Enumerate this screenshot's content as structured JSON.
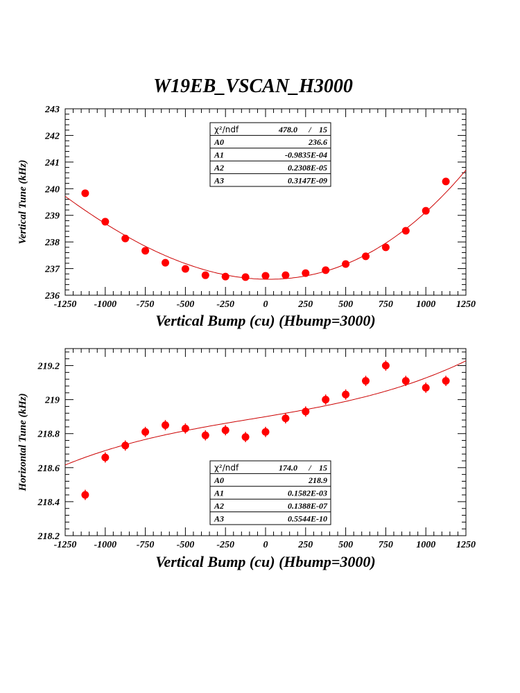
{
  "title": "W19EB_VSCAN_H3000",
  "colors": {
    "points": "#ff0000",
    "fit": "#cc0000",
    "frame": "#000000"
  },
  "chart_data": [
    {
      "type": "scatter",
      "fit": "cubic polynomial",
      "xlabel": "Vertical Bump (cu) (Hbump=3000)",
      "ylabel": "Vertical Tune (kHz)",
      "xlim": [
        -1250,
        1250
      ],
      "ylim": [
        236,
        243
      ],
      "xticks": [
        "-1250",
        "-1000",
        "-750",
        "-500",
        "-250",
        "0",
        "250",
        "500",
        "750",
        "1000",
        "1250"
      ],
      "yticks": [
        "236",
        "237",
        "238",
        "239",
        "240",
        "241",
        "242",
        "243"
      ],
      "x": [
        -1125,
        -1000,
        -875,
        -750,
        -625,
        -500,
        -375,
        -250,
        -125,
        0,
        125,
        250,
        375,
        500,
        625,
        750,
        875,
        1000,
        1125
      ],
      "y": [
        239.83,
        238.76,
        238.13,
        237.67,
        237.22,
        236.99,
        236.75,
        236.7,
        236.68,
        236.73,
        236.75,
        236.83,
        236.94,
        237.17,
        237.46,
        237.8,
        238.42,
        239.17,
        240.27
      ],
      "yerr": 0.01,
      "stats": {
        "chi2_label": "χ²/ndf",
        "chi2": "478.0",
        "sep": "/",
        "ndf": "15",
        "params": [
          {
            "name": "A0",
            "value": "236.6"
          },
          {
            "name": "A1",
            "value": "-0.9835E-04"
          },
          {
            "name": "A2",
            "value": "0.2308E-05"
          },
          {
            "name": "A3",
            "value": "0.3147E-09"
          }
        ]
      },
      "coeffs": [
        236.6,
        -9.835e-05,
        2.308e-06,
        3.147e-10
      ]
    },
    {
      "type": "scatter",
      "fit": "cubic polynomial",
      "xlabel": "Vertical Bump (cu) (Hbump=3000)",
      "ylabel": "Horizontal Tune (kHz)",
      "xlim": [
        -1250,
        1250
      ],
      "ylim": [
        218.2,
        219.3
      ],
      "xticks": [
        "-1250",
        "-1000",
        "-750",
        "-500",
        "-250",
        "0",
        "250",
        "500",
        "750",
        "1000",
        "1250"
      ],
      "yticks": [
        "218.2",
        "218.4",
        "218.6",
        "218.8",
        "219",
        "219.2"
      ],
      "x": [
        -1125,
        -1000,
        -875,
        -750,
        -625,
        -500,
        -375,
        -250,
        -125,
        0,
        125,
        250,
        375,
        500,
        625,
        750,
        875,
        1000,
        1125
      ],
      "y": [
        218.44,
        218.66,
        218.73,
        218.81,
        218.85,
        218.83,
        218.79,
        218.82,
        218.78,
        218.81,
        218.89,
        218.93,
        219.0,
        219.03,
        219.11,
        219.2,
        219.11,
        219.07,
        219.11
      ],
      "yerr": 0.03,
      "stats": {
        "chi2_label": "χ²/ndf",
        "chi2": "174.0",
        "sep": "/",
        "ndf": "15",
        "params": [
          {
            "name": "A0",
            "value": "218.9"
          },
          {
            "name": "A1",
            "value": "0.1582E-03"
          },
          {
            "name": "A2",
            "value": "0.1388E-07"
          },
          {
            "name": "A3",
            "value": "0.5544E-10"
          }
        ]
      },
      "coeffs": [
        218.9,
        0.0001582,
        1.388e-08,
        5.544e-11
      ]
    }
  ]
}
